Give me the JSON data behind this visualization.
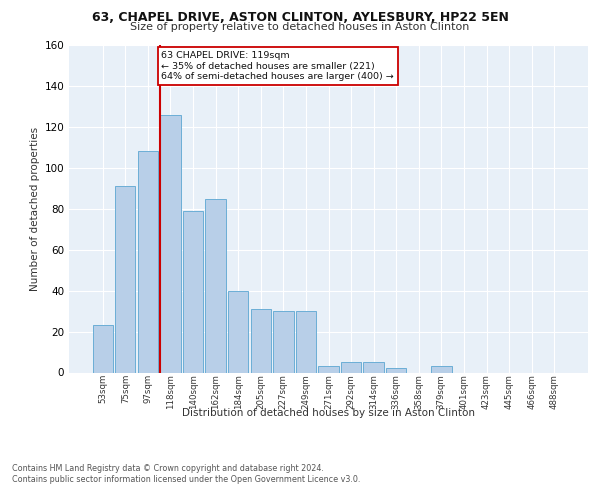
{
  "title1": "63, CHAPEL DRIVE, ASTON CLINTON, AYLESBURY, HP22 5EN",
  "title2": "Size of property relative to detached houses in Aston Clinton",
  "xlabel": "Distribution of detached houses by size in Aston Clinton",
  "ylabel": "Number of detached properties",
  "categories": [
    "53sqm",
    "75sqm",
    "97sqm",
    "118sqm",
    "140sqm",
    "162sqm",
    "184sqm",
    "205sqm",
    "227sqm",
    "249sqm",
    "271sqm",
    "292sqm",
    "314sqm",
    "336sqm",
    "358sqm",
    "379sqm",
    "401sqm",
    "423sqm",
    "445sqm",
    "466sqm",
    "488sqm"
  ],
  "values": [
    23,
    91,
    108,
    126,
    79,
    85,
    40,
    31,
    30,
    30,
    3,
    5,
    5,
    2,
    0,
    3,
    0,
    0,
    0,
    0,
    0
  ],
  "bar_color": "#b8cfe8",
  "bar_edge_color": "#6baed6",
  "highlight_line_color": "#cc0000",
  "annotation_text": "63 CHAPEL DRIVE: 119sqm\n← 35% of detached houses are smaller (221)\n64% of semi-detached houses are larger (400) →",
  "annotation_box_color": "#ffffff",
  "annotation_box_edge": "#cc0000",
  "ylim": [
    0,
    160
  ],
  "yticks": [
    0,
    20,
    40,
    60,
    80,
    100,
    120,
    140,
    160
  ],
  "background_color": "#e8f0f8",
  "grid_color": "#ffffff",
  "footer1": "Contains HM Land Registry data © Crown copyright and database right 2024.",
  "footer2": "Contains public sector information licensed under the Open Government Licence v3.0."
}
